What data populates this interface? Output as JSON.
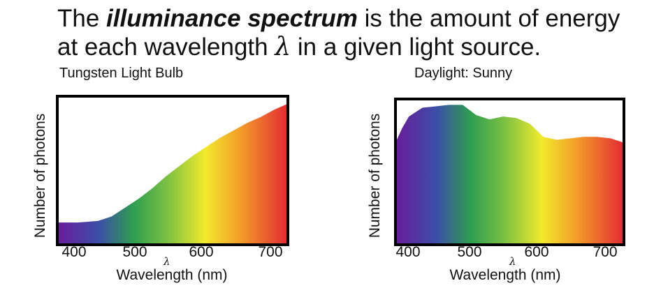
{
  "headline": {
    "prefix": "The ",
    "emphasis": "illuminance spectrum",
    "middle": " is the amount of energy at each wavelength ",
    "symbol": "λ",
    "suffix": " in a given light source."
  },
  "spectrum_colors": [
    "#6a1b9a",
    "#3b4fa8",
    "#2e9e4f",
    "#7cc242",
    "#f2ea2c",
    "#f39a2a",
    "#e22a33"
  ],
  "chart_data": [
    {
      "type": "area",
      "title": "Tungsten Light Bulb",
      "xlabel": "Wavelength (nm)",
      "xlabel_marker": "λ",
      "ylabel": "Number of photons",
      "xlim": [
        380,
        720
      ],
      "ylim": [
        0,
        1
      ],
      "xticks": [
        "400",
        "500",
        "600",
        "700"
      ],
      "grid": false,
      "x": [
        380,
        410,
        440,
        460,
        480,
        500,
        520,
        540,
        560,
        580,
        600,
        620,
        640,
        660,
        680,
        700,
        720
      ],
      "y": [
        0.15,
        0.15,
        0.16,
        0.19,
        0.25,
        0.31,
        0.38,
        0.46,
        0.53,
        0.6,
        0.66,
        0.72,
        0.77,
        0.82,
        0.86,
        0.91,
        0.95
      ]
    },
    {
      "type": "area",
      "title": "Daylight: Sunny",
      "xlabel": "Wavelength (nm)",
      "xlabel_marker": "λ",
      "ylabel": "Number of photons",
      "xlim": [
        380,
        720
      ],
      "ylim": [
        0,
        1
      ],
      "xticks": [
        "400",
        "500",
        "600",
        "700"
      ],
      "grid": false,
      "x": [
        380,
        390,
        400,
        420,
        440,
        460,
        480,
        500,
        520,
        540,
        560,
        580,
        600,
        620,
        640,
        660,
        680,
        700,
        720
      ],
      "y": [
        0.7,
        0.8,
        0.88,
        0.94,
        0.95,
        0.96,
        0.96,
        0.89,
        0.86,
        0.88,
        0.87,
        0.83,
        0.74,
        0.72,
        0.73,
        0.74,
        0.74,
        0.73,
        0.7
      ]
    }
  ]
}
